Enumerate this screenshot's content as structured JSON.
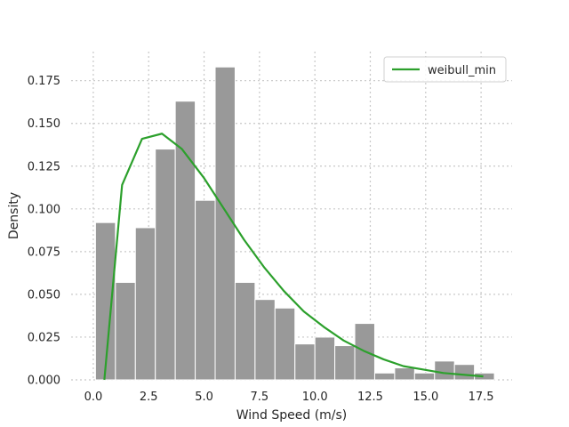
{
  "chart_data": {
    "type": "bar",
    "title": "",
    "xlabel": "Wind Speed (m/s)",
    "ylabel": "Density",
    "xlim": [
      -1.0,
      18.9
    ],
    "ylim": [
      0,
      0.192
    ],
    "xticks": [
      0.0,
      2.5,
      5.0,
      7.5,
      10.0,
      12.5,
      15.0,
      17.5
    ],
    "xtick_labels": [
      "0.0",
      "2.5",
      "5.0",
      "7.5",
      "10.0",
      "12.5",
      "15.0",
      "17.5"
    ],
    "yticks": [
      0.0,
      0.025,
      0.05,
      0.075,
      0.1,
      0.125,
      0.15,
      0.175
    ],
    "ytick_labels": [
      "0.000",
      "0.025",
      "0.050",
      "0.075",
      "0.100",
      "0.125",
      "0.150",
      "0.175"
    ],
    "grid": true,
    "legend_position": "top-right",
    "histogram": {
      "bin_start": 0.1,
      "bin_width": 0.9,
      "color": "#999999",
      "density": [
        0.092,
        0.057,
        0.089,
        0.135,
        0.163,
        0.105,
        0.183,
        0.057,
        0.047,
        0.042,
        0.021,
        0.025,
        0.02,
        0.033,
        0.004,
        0.007,
        0.004,
        0.011,
        0.009,
        0.004
      ]
    },
    "series": [
      {
        "name": "weibull_min",
        "type": "line",
        "color": "#2ca02c",
        "x": [
          0.5,
          1.3,
          2.2,
          3.1,
          4.0,
          5.0,
          5.9,
          6.8,
          7.7,
          8.6,
          9.5,
          10.4,
          11.3,
          12.2,
          13.1,
          14.0,
          14.9,
          15.8,
          16.7,
          17.6
        ],
        "y": [
          0.0,
          0.114,
          0.141,
          0.144,
          0.135,
          0.118,
          0.1,
          0.082,
          0.066,
          0.052,
          0.04,
          0.031,
          0.023,
          0.017,
          0.012,
          0.008,
          0.006,
          0.004,
          0.003,
          0.002
        ]
      }
    ]
  }
}
